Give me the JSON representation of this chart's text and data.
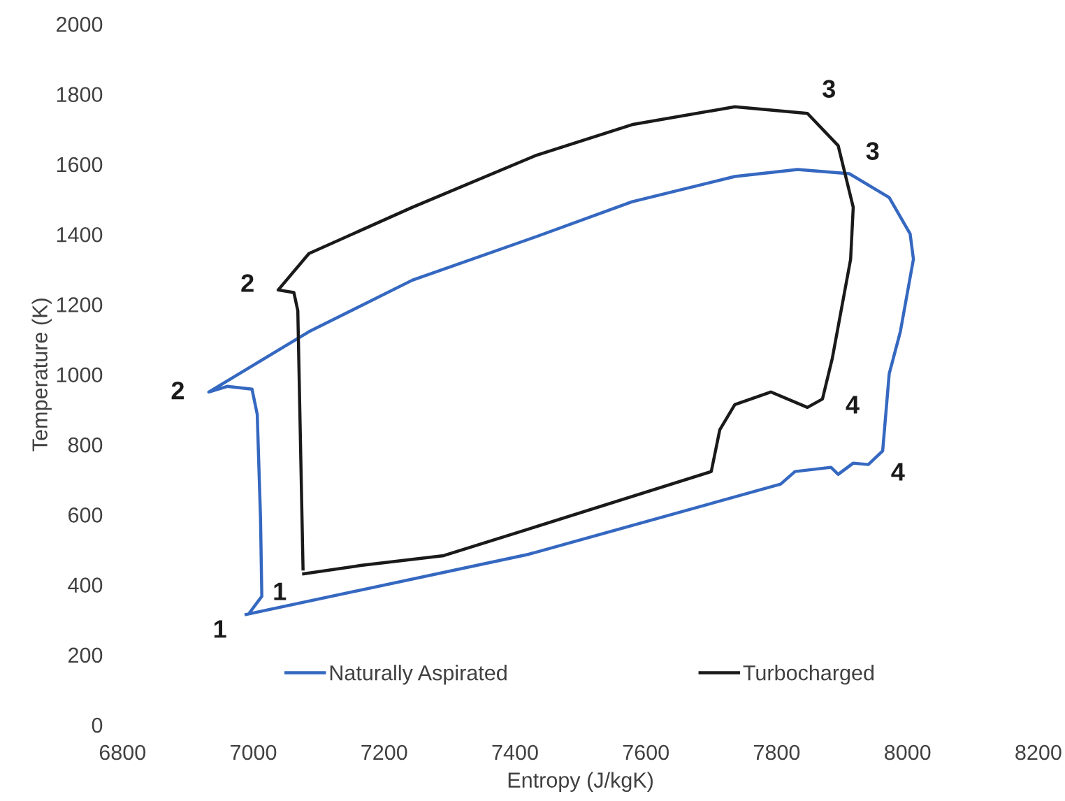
{
  "chart_data": {
    "type": "line",
    "xlabel": "Entropy (J/kgK)",
    "ylabel": "Temperature (K)",
    "xlim": [
      6800,
      8200
    ],
    "xticks": [
      6800,
      7000,
      7200,
      7400,
      7600,
      7800,
      8000,
      8200
    ],
    "ylim": [
      0,
      2000
    ],
    "yticks": [
      0,
      200,
      400,
      600,
      800,
      1000,
      1200,
      1400,
      1600,
      1800,
      2000
    ],
    "grid": false,
    "legend": "bottom",
    "marker": "none",
    "line_style": "solid",
    "series": [
      {
        "name": "Naturally Aspirated",
        "color": "#3568c0",
        "x": [
          6989,
          7421,
          7806,
          7828,
          7883,
          7894,
          7917,
          7940,
          7962,
          7972,
          7989,
          8009,
          8004,
          7972,
          7911,
          7832,
          7736,
          7579,
          7432,
          7243,
          7085,
          6932,
          6960,
          6998,
          7006,
          7011,
          7013,
          6995
        ],
        "values": [
          315,
          487,
          687,
          723,
          735,
          715,
          747,
          743,
          782,
          1002,
          1122,
          1329,
          1401,
          1505,
          1573,
          1585,
          1565,
          1493,
          1393,
          1269,
          1122,
          950,
          966,
          958,
          886,
          591,
          367,
          322
        ]
      },
      {
        "name": "Turbocharged",
        "color": "#1a1a1a",
        "x": [
          7077,
          7164,
          7291,
          7421,
          7700,
          7713,
          7736,
          7791,
          7847,
          7870,
          7885,
          7913,
          7917,
          7894,
          7847,
          7736,
          7579,
          7432,
          7243,
          7085,
          7038,
          7062,
          7068,
          7076
        ],
        "values": [
          431,
          455,
          483,
          559,
          723,
          842,
          914,
          950,
          906,
          930,
          1046,
          1329,
          1477,
          1653,
          1745,
          1764,
          1713,
          1625,
          1477,
          1345,
          1241,
          1234,
          1182,
          445
        ]
      }
    ],
    "annotations": [
      {
        "text": "1",
        "x": 6989,
        "y": 315
      },
      {
        "text": "1",
        "x": 7077,
        "y": 431
      },
      {
        "text": "2",
        "x": 6932,
        "y": 950
      },
      {
        "text": "2",
        "x": 7038,
        "y": 1241
      },
      {
        "text": "3",
        "x": 7847,
        "y": 1745
      },
      {
        "text": "3",
        "x": 7911,
        "y": 1573
      },
      {
        "text": "4",
        "x": 7870,
        "y": 930
      },
      {
        "text": "4",
        "x": 7940,
        "y": 743
      }
    ]
  }
}
